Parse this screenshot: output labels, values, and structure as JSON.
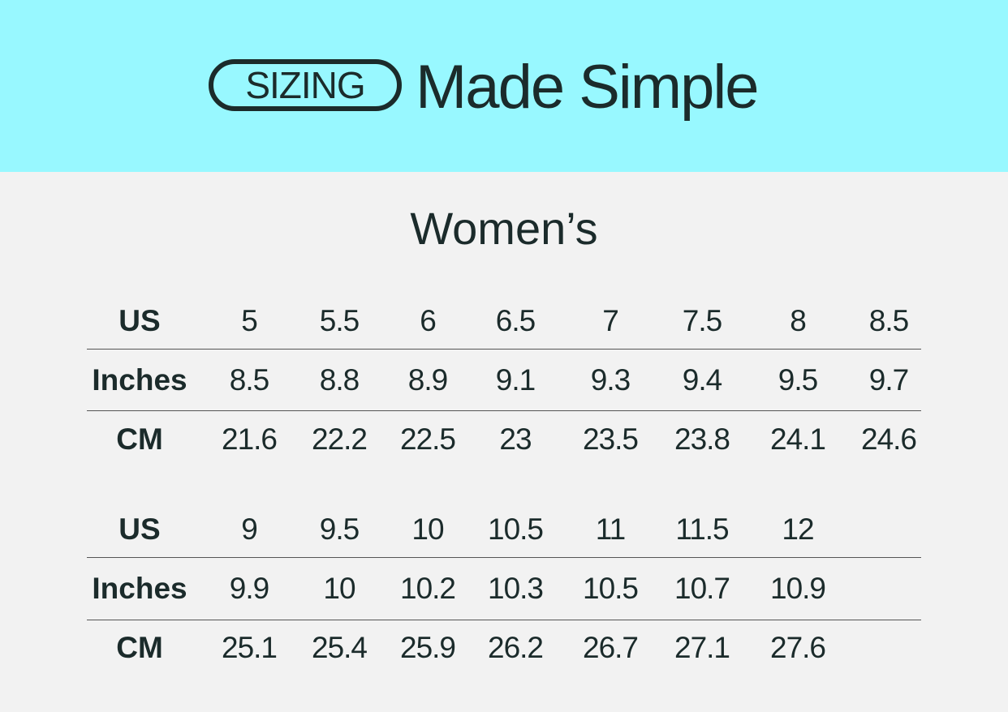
{
  "header": {
    "badge": "SIZING",
    "title": "Made Simple",
    "background": "#98f8ff"
  },
  "section_title": "Women’s",
  "tables": [
    {
      "rows": [
        {
          "label": "US",
          "values": [
            "5",
            "5.5",
            "6",
            "6.5",
            "7",
            "7.5",
            "8",
            "8.5"
          ]
        },
        {
          "label": "Inches",
          "values": [
            "8.5",
            "8.8",
            "8.9",
            "9.1",
            "9.3",
            "9.4",
            "9.5",
            "9.7"
          ]
        },
        {
          "label": "CM",
          "values": [
            "21.6",
            "22.2",
            "22.5",
            "23",
            "23.5",
            "23.8",
            "24.1",
            "24.6"
          ]
        }
      ]
    },
    {
      "rows": [
        {
          "label": "US",
          "values": [
            "9",
            "9.5",
            "10",
            "10.5",
            "11",
            "11.5",
            "12"
          ]
        },
        {
          "label": "Inches",
          "values": [
            "9.9",
            "10",
            "10.2",
            "10.3",
            "10.5",
            "10.7",
            "10.9"
          ]
        },
        {
          "label": "CM",
          "values": [
            "25.1",
            "25.4",
            "25.9",
            "26.2",
            "26.7",
            "27.1",
            "27.6"
          ]
        }
      ]
    }
  ]
}
